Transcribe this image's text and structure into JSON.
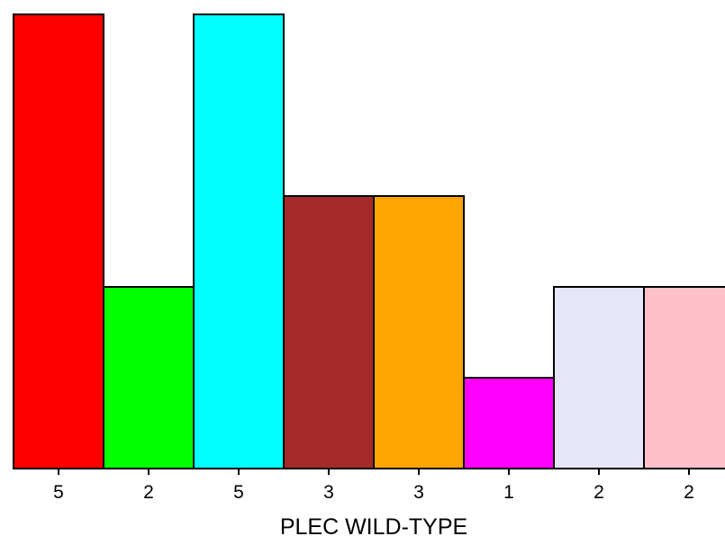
{
  "chart_data": {
    "type": "bar",
    "title": "",
    "xlabel": "PLEC WILD-TYPE",
    "ylabel": "",
    "categories": [
      "5",
      "2",
      "5",
      "3",
      "3",
      "1",
      "2",
      "2"
    ],
    "values": [
      5,
      2,
      5,
      3,
      3,
      1,
      2,
      2
    ],
    "colors": [
      "#ff0000",
      "#00ff00",
      "#00ffff",
      "#a52a2a",
      "#ffa500",
      "#ff00ff",
      "#e6e6fa",
      "#ffc0cb"
    ],
    "ylim": [
      0,
      5
    ],
    "grid": false,
    "legend": "none"
  }
}
